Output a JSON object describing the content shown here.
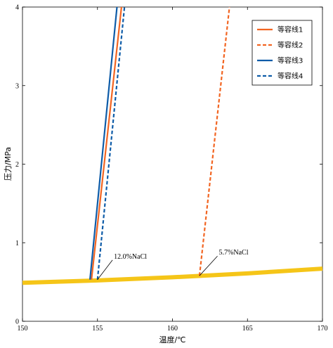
{
  "chart_data": {
    "type": "line",
    "xlabel": "温度/℃",
    "ylabel": "压力/MPa",
    "xlim": [
      150,
      170
    ],
    "ylim": [
      0,
      4
    ],
    "xticks": [
      150,
      155,
      160,
      165,
      170
    ],
    "yticks": [
      0,
      1,
      2,
      3,
      4
    ],
    "grid": false,
    "legend_position": "top-right",
    "series": [
      {
        "name": "等容线1",
        "color": "#F26522",
        "style": "solid",
        "x": [
          154.6,
          156.6
        ],
        "y": [
          0.53,
          4.0
        ]
      },
      {
        "name": "等容线2",
        "color": "#F26522",
        "style": "dashed",
        "x": [
          161.8,
          163.8
        ],
        "y": [
          0.58,
          4.0
        ]
      },
      {
        "name": "等容线3",
        "color": "#0E5CA8",
        "style": "solid",
        "x": [
          154.5,
          156.3
        ],
        "y": [
          0.53,
          4.0
        ]
      },
      {
        "name": "等容线4",
        "color": "#0E5CA8",
        "style": "dashed",
        "x": [
          155.0,
          156.8
        ],
        "y": [
          0.53,
          4.0
        ]
      }
    ],
    "saturation_curve": {
      "color": "#F5C518",
      "x": [
        150,
        155,
        160,
        165,
        170
      ],
      "y": [
        0.49,
        0.52,
        0.56,
        0.61,
        0.67
      ]
    },
    "annotations": [
      {
        "text": "12.0%NaCl",
        "x": 155.0,
        "y": 0.53,
        "tx": 156.0,
        "ty": 0.78
      },
      {
        "text": "5.7%NaCl",
        "x": 161.8,
        "y": 0.58,
        "tx": 163.0,
        "ty": 0.83
      }
    ]
  }
}
